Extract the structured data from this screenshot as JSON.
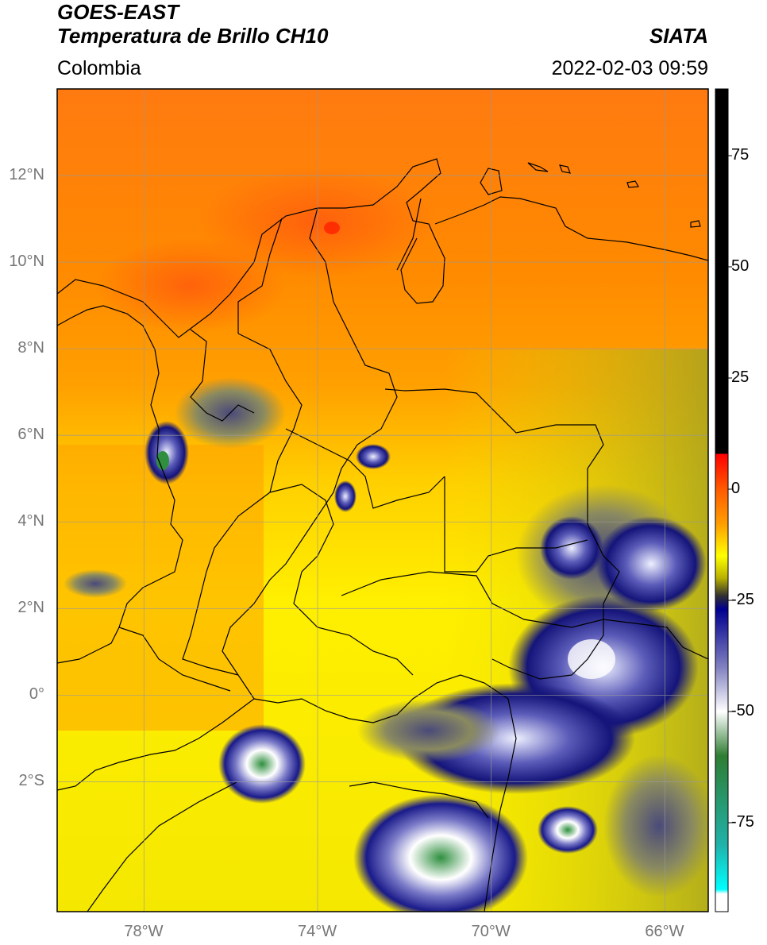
{
  "header": {
    "satellite": "GOES-EAST",
    "product": "Temperatura de Brillo CH10",
    "region": "Colombia",
    "agency": "SIATA",
    "datetime": "2022-02-03 09:59"
  },
  "map": {
    "lon_range": [
      -80,
      -65
    ],
    "lat_range": [
      -5,
      14
    ],
    "lon_ticks": [
      {
        "value": -78,
        "label": "78°W"
      },
      {
        "value": -74,
        "label": "74°W"
      },
      {
        "value": -70,
        "label": "70°W"
      },
      {
        "value": -66,
        "label": "66°W"
      }
    ],
    "lat_ticks": [
      {
        "value": 12,
        "label": "12°N"
      },
      {
        "value": 10,
        "label": "10°N"
      },
      {
        "value": 8,
        "label": "8°N"
      },
      {
        "value": 6,
        "label": "6°N"
      },
      {
        "value": 4,
        "label": "4°N"
      },
      {
        "value": 2,
        "label": "2°N"
      },
      {
        "value": 0,
        "label": "0°"
      },
      {
        "value": -2,
        "label": "2°S"
      }
    ],
    "gridlines": true
  },
  "colorbar": {
    "range": [
      -95,
      90
    ],
    "ticks": [
      {
        "value": 75,
        "label": "75"
      },
      {
        "value": 50,
        "label": "50"
      },
      {
        "value": 25,
        "label": "25"
      },
      {
        "value": 0,
        "label": "0"
      },
      {
        "value": -25,
        "label": "-25"
      },
      {
        "value": -50,
        "label": "-50"
      },
      {
        "value": -75,
        "label": "-75"
      }
    ],
    "stops": [
      {
        "value": 90,
        "color": "#000000"
      },
      {
        "value": 8,
        "color": "#000000"
      },
      {
        "value": 7.9,
        "color": "#ff0000"
      },
      {
        "value": 0,
        "color": "#ff5a00"
      },
      {
        "value": -8,
        "color": "#ffa000"
      },
      {
        "value": -15,
        "color": "#ffff00"
      },
      {
        "value": -20,
        "color": "#b8b000"
      },
      {
        "value": -24,
        "color": "#303030"
      },
      {
        "value": -27,
        "color": "#000090"
      },
      {
        "value": -40,
        "color": "#8080c0"
      },
      {
        "value": -50,
        "color": "#ffffff"
      },
      {
        "value": -60,
        "color": "#2e7d32"
      },
      {
        "value": -80,
        "color": "#20b2aa"
      },
      {
        "value": -90,
        "color": "#00ffff"
      },
      {
        "value": -91,
        "color": "#ffffff"
      },
      {
        "value": -95,
        "color": "#ffffff"
      }
    ]
  }
}
